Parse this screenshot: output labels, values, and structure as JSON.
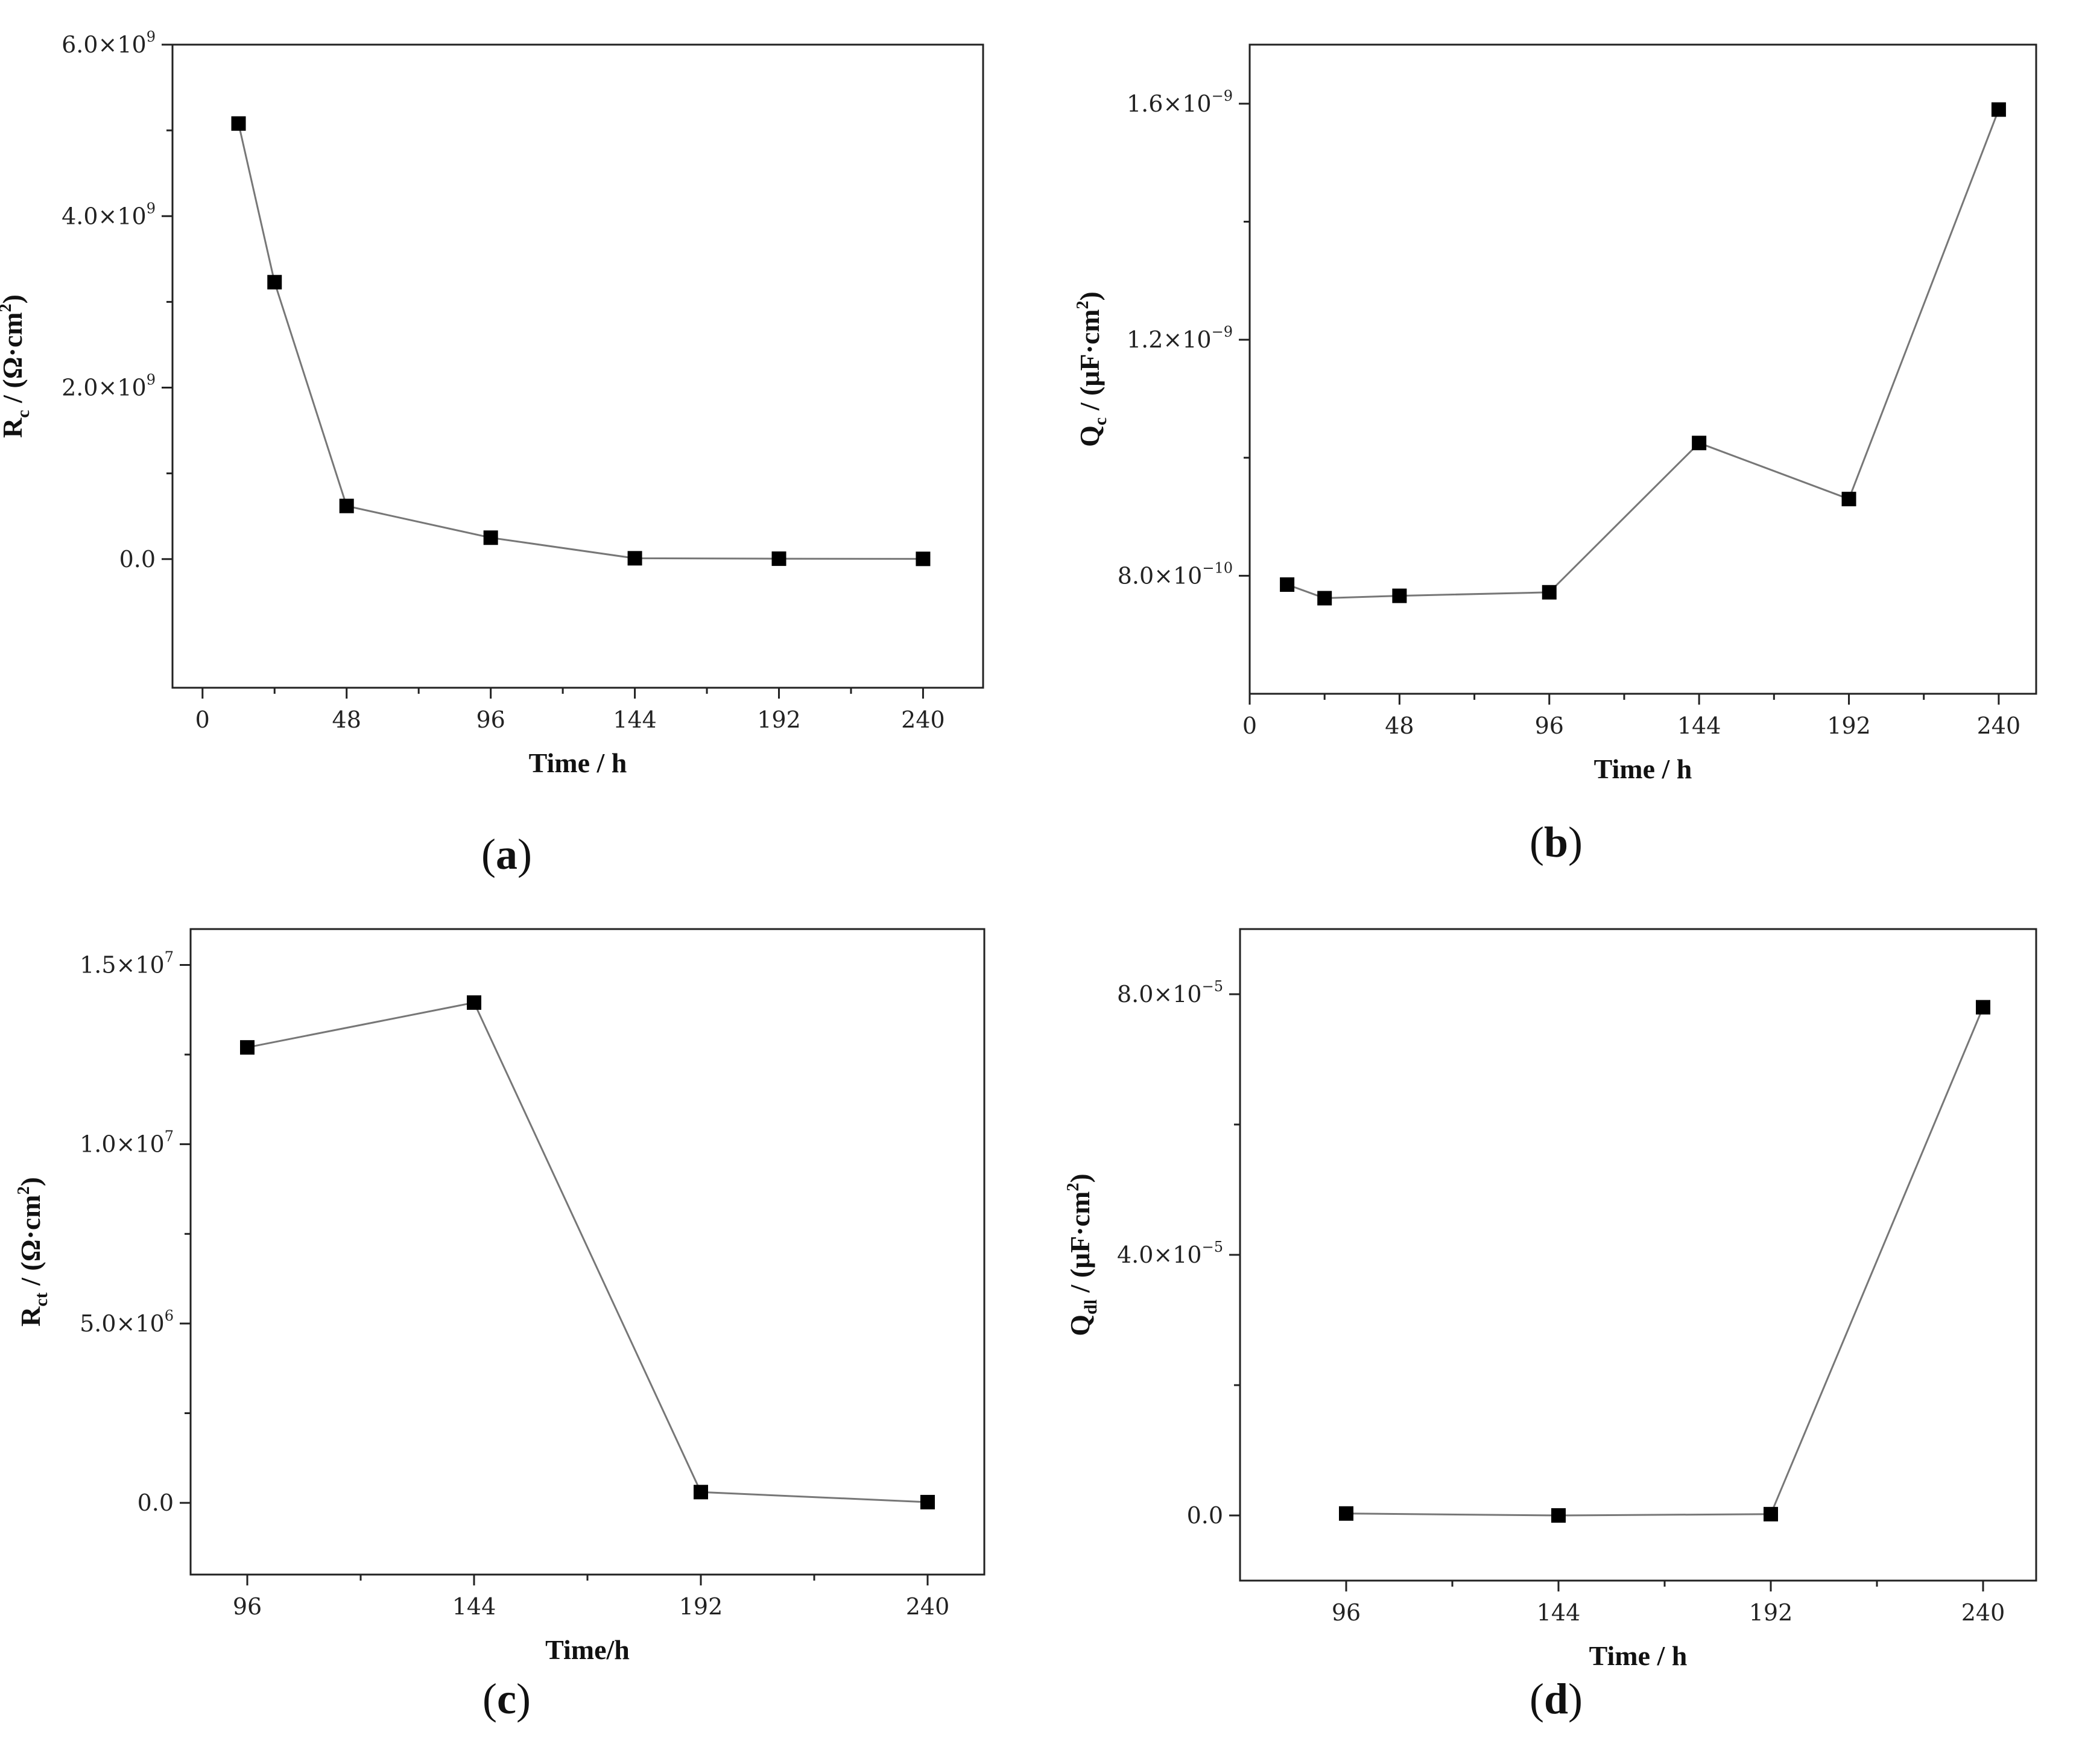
{
  "chart_data": [
    {
      "type": "line",
      "panel": "(a)",
      "panel_letter": "a",
      "xlabel": "Time / h",
      "ylabel": {
        "base": "R",
        "sub": "c",
        "unit_pre": " / (Ω·cm",
        "unit_sup": "2",
        "unit_post": ")"
      },
      "xlim": [
        -10,
        260
      ],
      "ylim": [
        -1500000000.0,
        6000000000.0
      ],
      "xticks": [
        {
          "value": 0,
          "label": "0"
        },
        {
          "value": 48,
          "label": "48"
        },
        {
          "value": 96,
          "label": "96"
        },
        {
          "value": 144,
          "label": "144"
        },
        {
          "value": 192,
          "label": "192"
        },
        {
          "value": 240,
          "label": "240"
        }
      ],
      "yticks": [
        {
          "value": 0,
          "mant": "0.0",
          "exp": ""
        },
        {
          "value": 2000000000.0,
          "mant": "2.0×10",
          "exp": "9"
        },
        {
          "value": 4000000000.0,
          "mant": "4.0×10",
          "exp": "9"
        },
        {
          "value": 6000000000.0,
          "mant": "6.0×10",
          "exp": "9"
        }
      ],
      "series": [
        {
          "x": [
            12,
            24,
            48,
            96,
            144,
            192,
            240
          ],
          "y": [
            5080000000.0,
            3230000000.0,
            620000000.0,
            250000000.0,
            10000000.0,
            5000000.0,
            3000000.0
          ]
        }
      ]
    },
    {
      "type": "line",
      "panel": "(b)",
      "panel_letter": "b",
      "xlabel": "Time / h",
      "ylabel": {
        "base": "Q",
        "sub": "c",
        "unit_pre": " / (μF·cm",
        "unit_sup": "2",
        "unit_post": ")"
      },
      "xlim": [
        0,
        252
      ],
      "ylim": [
        6e-10,
        1.7e-09
      ],
      "xticks": [
        {
          "value": 0,
          "label": "0"
        },
        {
          "value": 48,
          "label": "48"
        },
        {
          "value": 96,
          "label": "96"
        },
        {
          "value": 144,
          "label": "144"
        },
        {
          "value": 192,
          "label": "192"
        },
        {
          "value": 240,
          "label": "240"
        }
      ],
      "yticks": [
        {
          "value": 8e-10,
          "mant": "8.0×10",
          "exp": "−10"
        },
        {
          "value": 1.2e-09,
          "mant": "1.2×10",
          "exp": "−9"
        },
        {
          "value": 1.6e-09,
          "mant": "1.6×10",
          "exp": "−9"
        }
      ],
      "series": [
        {
          "x": [
            12,
            24,
            48,
            96,
            144,
            192,
            240
          ],
          "y": [
            7.85e-10,
            7.62e-10,
            7.66e-10,
            7.72e-10,
            1.025e-09,
            9.3e-10,
            1.59e-09
          ]
        }
      ]
    },
    {
      "type": "line",
      "panel": "(c)",
      "panel_letter": "c",
      "xlabel": "Time/h",
      "ylabel": {
        "base": "R",
        "sub": "ct",
        "unit_pre": " / (Ω·cm",
        "unit_sup": "2",
        "unit_post": ")"
      },
      "xlim": [
        84,
        252
      ],
      "ylim": [
        -2000000.0,
        16000000.0
      ],
      "xticks": [
        {
          "value": 96,
          "label": "96"
        },
        {
          "value": 144,
          "label": "144"
        },
        {
          "value": 192,
          "label": "192"
        },
        {
          "value": 240,
          "label": "240"
        }
      ],
      "yticks": [
        {
          "value": 0,
          "mant": "0.0",
          "exp": ""
        },
        {
          "value": 5000000.0,
          "mant": "5.0×10",
          "exp": "6"
        },
        {
          "value": 10000000.0,
          "mant": "1.0×10",
          "exp": "7"
        },
        {
          "value": 15000000.0,
          "mant": "1.5×10",
          "exp": "7"
        }
      ],
      "series": [
        {
          "x": [
            96,
            144,
            192,
            240
          ],
          "y": [
            12700000.0,
            13950000.0,
            300000.0,
            20000.0
          ]
        }
      ]
    },
    {
      "type": "line",
      "panel": "(d)",
      "panel_letter": "d",
      "xlabel": "Time / h",
      "ylabel": {
        "base": "Q",
        "sub": "dl",
        "unit_pre": " / (μF·cm",
        "unit_sup": "2",
        "unit_post": ")"
      },
      "xlim": [
        72,
        252
      ],
      "ylim": [
        -1e-05,
        9e-05
      ],
      "xticks": [
        {
          "value": 96,
          "label": "96"
        },
        {
          "value": 144,
          "label": "144"
        },
        {
          "value": 192,
          "label": "192"
        },
        {
          "value": 240,
          "label": "240"
        }
      ],
      "yticks": [
        {
          "value": 0,
          "mant": "0.0",
          "exp": ""
        },
        {
          "value": 4e-05,
          "mant": "4.0×10",
          "exp": "−5"
        },
        {
          "value": 8e-05,
          "mant": "8.0×10",
          "exp": "−5"
        }
      ],
      "series": [
        {
          "x": [
            96,
            144,
            192,
            240
          ],
          "y": [
            3e-07,
            0.0,
            2e-07,
            7.8e-05
          ]
        }
      ]
    }
  ]
}
